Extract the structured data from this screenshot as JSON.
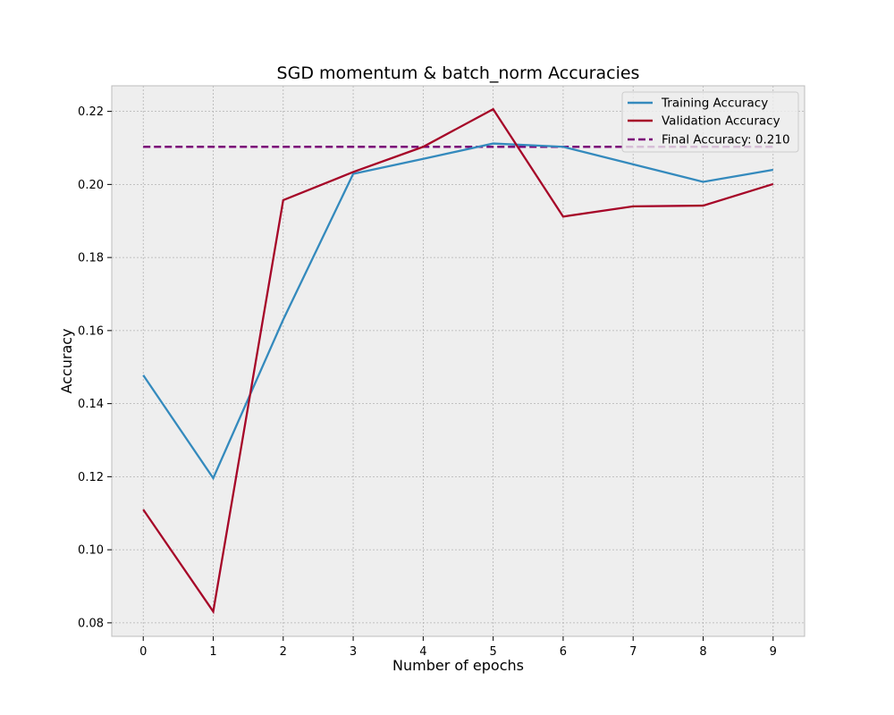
{
  "chart_data": {
    "type": "line",
    "title": "SGD momentum & batch_norm Accuracies",
    "xlabel": "Number of epochs",
    "ylabel": "Accuracy",
    "x": [
      0,
      1,
      2,
      3,
      4,
      5,
      6,
      7,
      8,
      9
    ],
    "x_ticks": [
      "0",
      "1",
      "2",
      "3",
      "4",
      "5",
      "6",
      "7",
      "8",
      "9"
    ],
    "y_ticks": [
      "0.08",
      "0.10",
      "0.12",
      "0.14",
      "0.16",
      "0.18",
      "0.20",
      "0.22"
    ],
    "xlim": [
      -0.45,
      9.45
    ],
    "ylim": [
      0.0763,
      0.227
    ],
    "grid": true,
    "legend_position": "top-right",
    "background_color": "#eeeeee",
    "series": [
      {
        "name": "Training Accuracy",
        "color": "#348abd",
        "style": "solid",
        "values": [
          0.1478,
          0.1196,
          0.163,
          0.2029,
          0.207,
          0.2112,
          0.2103,
          0.2055,
          0.2007,
          0.204
        ]
      },
      {
        "name": "Validation Accuracy",
        "color": "#a60628",
        "style": "solid",
        "values": [
          0.111,
          0.0831,
          0.1957,
          0.2034,
          0.2103,
          0.2206,
          0.1912,
          0.194,
          0.1942,
          0.2001
        ]
      }
    ],
    "reference_lines": [
      {
        "name": "Final Accuracy: 0.210",
        "color": "#7a0177",
        "style": "dashed",
        "y": 0.2103
      }
    ]
  }
}
